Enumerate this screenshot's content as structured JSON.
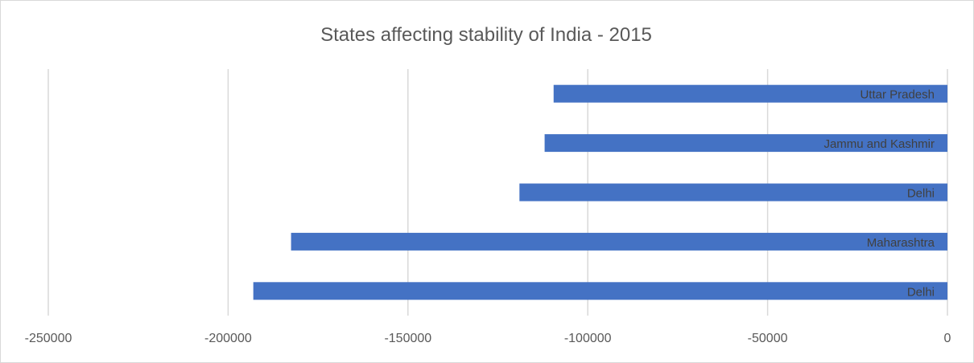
{
  "chart_data": {
    "type": "bar",
    "orientation": "horizontal",
    "title": "States affecting stability of India - 2015",
    "categories": [
      "Uttar Pradesh",
      "Jammu and Kashmir",
      "Delhi",
      "Maharashtra",
      "Delhi"
    ],
    "values": [
      -109500,
      -112000,
      -119000,
      -182500,
      -193000
    ],
    "xlim": [
      -250000,
      0
    ],
    "xticks": [
      -250000,
      -200000,
      -150000,
      -100000,
      -50000,
      0
    ],
    "xtick_labels": [
      "-250000",
      "-200000",
      "-150000",
      "-100000",
      "-50000",
      "0"
    ],
    "grid": true,
    "bar_color": "#4472c4",
    "grid_color": "#d9d9d9",
    "text_color": "#595959"
  }
}
